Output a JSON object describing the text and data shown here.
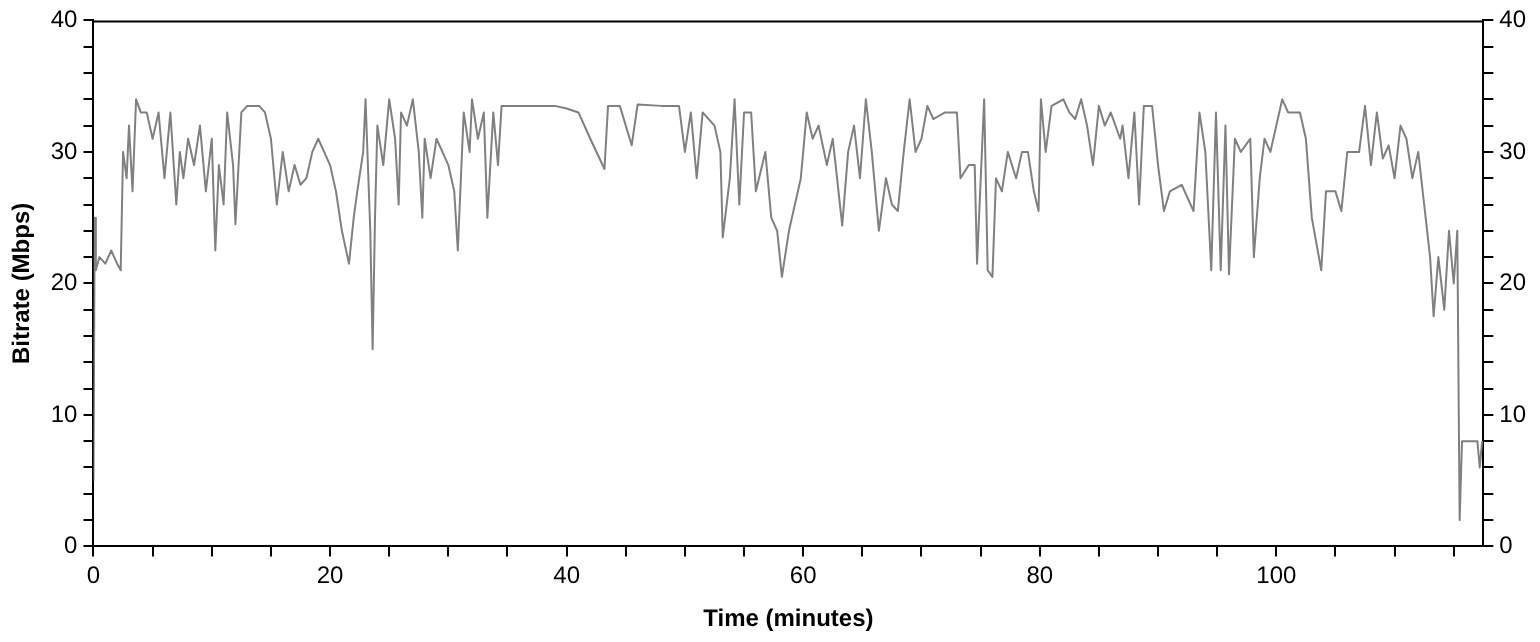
{
  "chart_data": {
    "type": "line",
    "xlabel": "Time (minutes)",
    "ylabel": "Bitrate (Mbps)",
    "xlim": [
      0,
      117.5
    ],
    "ylim": [
      0,
      40
    ],
    "y2lim": [
      0,
      40
    ],
    "xticks": [
      0,
      {
        "value": 5,
        "label": null
      },
      {
        "value": 10,
        "label": null
      },
      {
        "value": 15,
        "label": null
      },
      20,
      {
        "value": 25,
        "label": null
      },
      {
        "value": 30,
        "label": null
      },
      {
        "value": 35,
        "label": null
      },
      40,
      {
        "value": 45,
        "label": null
      },
      {
        "value": 50,
        "label": null
      },
      {
        "value": 55,
        "label": null
      },
      60,
      {
        "value": 65,
        "label": null
      },
      {
        "value": 70,
        "label": null
      },
      {
        "value": 75,
        "label": null
      },
      80,
      {
        "value": 85,
        "label": null
      },
      {
        "value": 90,
        "label": null
      },
      {
        "value": 95,
        "label": null
      },
      100,
      {
        "value": 105,
        "label": null
      },
      {
        "value": 110,
        "label": null
      },
      {
        "value": 115,
        "label": null
      }
    ],
    "yticks": [
      0,
      {
        "value": 2,
        "label": null
      },
      {
        "value": 4,
        "label": null
      },
      {
        "value": 6,
        "label": null
      },
      {
        "value": 8,
        "label": null
      },
      10,
      {
        "value": 12,
        "label": null
      },
      {
        "value": 14,
        "label": null
      },
      {
        "value": 16,
        "label": null
      },
      {
        "value": 18,
        "label": null
      },
      20,
      {
        "value": 22,
        "label": null
      },
      {
        "value": 24,
        "label": null
      },
      {
        "value": 26,
        "label": null
      },
      {
        "value": 28,
        "label": null
      },
      30,
      {
        "value": 32,
        "label": null
      },
      {
        "value": 34,
        "label": null
      },
      {
        "value": 36,
        "label": null
      },
      {
        "value": 38,
        "label": null
      },
      40
    ],
    "y2ticks": [
      0,
      {
        "value": 2,
        "label": null
      },
      {
        "value": 4,
        "label": null
      },
      {
        "value": 6,
        "label": null
      },
      {
        "value": 8,
        "label": null
      },
      10,
      {
        "value": 12,
        "label": null
      },
      {
        "value": 14,
        "label": null
      },
      {
        "value": 16,
        "label": null
      },
      {
        "value": 18,
        "label": null
      },
      20,
      {
        "value": 22,
        "label": null
      },
      {
        "value": 24,
        "label": null
      },
      {
        "value": 26,
        "label": null
      },
      {
        "value": 28,
        "label": null
      },
      30,
      {
        "value": 32,
        "label": null
      },
      {
        "value": 34,
        "label": null
      },
      {
        "value": 36,
        "label": null
      },
      {
        "value": 38,
        "label": null
      },
      40
    ],
    "grid": false,
    "legend": false,
    "marker": "none",
    "line_style": "solid",
    "series": [
      {
        "color": "#808080",
        "x": [
          0,
          0.1,
          0.2,
          0.5,
          1,
          1.5,
          2,
          2.3,
          2.5,
          2.8,
          3,
          3.3,
          3.6,
          4,
          4.5,
          5,
          5.5,
          6,
          6.5,
          7,
          7.3,
          7.6,
          8,
          8.5,
          9,
          9.5,
          10,
          10.3,
          10.6,
          11,
          11.3,
          11.8,
          12,
          12.5,
          13,
          14,
          14.5,
          15,
          15.5,
          16,
          16.5,
          17,
          17.5,
          18,
          18.5,
          19,
          19.5,
          20,
          20.5,
          21,
          21.6,
          22,
          22.3,
          22.8,
          23,
          23.4,
          23.6,
          23.8,
          24,
          24.5,
          25,
          25.5,
          25.8,
          26,
          26.5,
          27,
          27.5,
          27.8,
          28,
          28.5,
          29,
          29.5,
          30,
          30.5,
          30.8,
          31.3,
          31.8,
          32,
          32.5,
          33,
          33.3,
          33.8,
          34.2,
          34.5,
          35,
          37,
          39,
          40,
          41,
          42,
          43.2,
          43.5,
          44.5,
          45.5,
          46,
          48,
          49.5,
          50,
          50.5,
          51,
          51.5,
          52.5,
          53,
          53.2,
          53.8,
          54.2,
          54.6,
          55,
          55.6,
          56,
          56.8,
          57.3,
          57.8,
          58.2,
          58.8,
          59.3,
          59.8,
          60.3,
          60.8,
          61.3,
          62,
          62.5,
          63.3,
          63.8,
          64.3,
          64.8,
          65.3,
          65.8,
          66.4,
          67,
          67.5,
          68,
          68.5,
          69,
          69.5,
          70,
          70.5,
          71,
          72,
          73,
          73.3,
          74,
          74.5,
          74.7,
          75.3,
          75.6,
          76,
          76.3,
          76.8,
          77.3,
          78,
          78.5,
          79,
          79.5,
          79.9,
          80.1,
          80.5,
          81,
          82,
          82.5,
          83,
          83.5,
          84,
          84.5,
          85,
          85.5,
          86,
          86.8,
          87,
          87.5,
          88,
          88.4,
          88.8,
          89.5,
          90,
          90.5,
          91,
          92,
          93,
          93.5,
          94,
          94.5,
          94.9,
          95.3,
          95.7,
          96,
          96.5,
          97,
          97.8,
          98.1,
          98.6,
          99,
          99.5,
          100,
          100.5,
          101,
          102,
          102.5,
          103,
          103.8,
          104.2,
          105,
          105.5,
          106,
          107,
          107.5,
          108,
          108.5,
          109,
          109.5,
          110,
          110.5,
          111,
          111.5,
          112,
          112.5,
          113,
          113.3,
          113.7,
          114.2,
          114.6,
          115,
          115.3,
          115.5,
          115.7,
          116.5,
          117,
          117.2,
          117.4
        ],
        "values": [
          5,
          25,
          21,
          22,
          21.5,
          22.5,
          21.5,
          21,
          30,
          28,
          32,
          27,
          34,
          33,
          33,
          31,
          33,
          28,
          33,
          26,
          30,
          28,
          31,
          29,
          32,
          27,
          31,
          22.5,
          29,
          26,
          33,
          29,
          24.5,
          33,
          33.5,
          33.5,
          33,
          31,
          26,
          30,
          27,
          29,
          27.5,
          28,
          30,
          31,
          30,
          29,
          27,
          24,
          21.5,
          25,
          27,
          30,
          34,
          24,
          15,
          25,
          32,
          29,
          34,
          31,
          26,
          33,
          32,
          34,
          30,
          25,
          31,
          28,
          31,
          30,
          29,
          27,
          22.5,
          33,
          30,
          34,
          31,
          33,
          25,
          33,
          29,
          33.5,
          33.5,
          33.5,
          33.5,
          33.3,
          33,
          31,
          28.7,
          33.5,
          33.5,
          30.5,
          33.6,
          33.5,
          33.5,
          30,
          33,
          28,
          33,
          32,
          30,
          23.5,
          28,
          34,
          26,
          33,
          33,
          27,
          30,
          25,
          24,
          20.5,
          24,
          26,
          28,
          33,
          31,
          32,
          29,
          31,
          24.4,
          30,
          32,
          28,
          34,
          30,
          24,
          28,
          26,
          25.5,
          30,
          34,
          30,
          31,
          33.5,
          32.5,
          33,
          33,
          28,
          29,
          29,
          21.5,
          34,
          21,
          20.5,
          28,
          27,
          30,
          28,
          30,
          30,
          27,
          25.5,
          34,
          30,
          33.5,
          34,
          33,
          32.5,
          34,
          32,
          29,
          33.5,
          32,
          33,
          31,
          32,
          28,
          33,
          26,
          33.5,
          33.5,
          29,
          25.5,
          27,
          27.5,
          25.5,
          33,
          30,
          21,
          33,
          21,
          32,
          20.7,
          31,
          30,
          31,
          22,
          28,
          31,
          30,
          32,
          34,
          33,
          33,
          31,
          25,
          21,
          27,
          27,
          25.5,
          30,
          30,
          33.5,
          29,
          33,
          29.5,
          30.5,
          28,
          32,
          31,
          28,
          30,
          26,
          22,
          17.5,
          22,
          18,
          24,
          20,
          24,
          2,
          8,
          8,
          8,
          6,
          8
        ]
      }
    ]
  }
}
